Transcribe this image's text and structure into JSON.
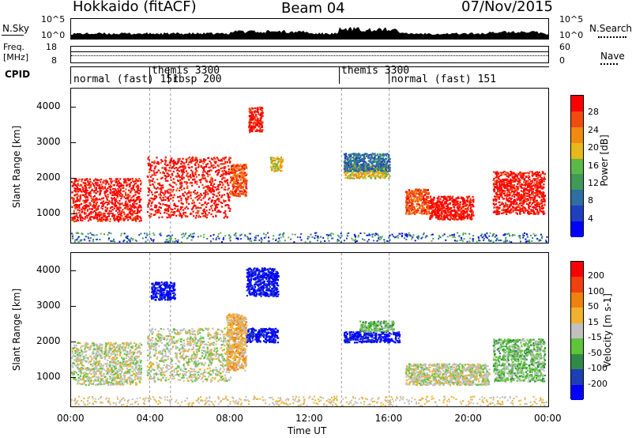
{
  "header": {
    "station": "Hokkaido (fitACF)",
    "beam": "Beam 04",
    "date": "07/Nov/2015"
  },
  "top_panels": {
    "nsky_label": "N.Sky",
    "nsky_ticks": [
      "10^5",
      "10^0"
    ],
    "nsearch_label": "N.Search",
    "nsearch_ticks": [
      "10^5",
      "10^0"
    ],
    "freq_label_1": "Freq.",
    "freq_label_2": "[MHz]",
    "freq_ticks": [
      "18",
      "8"
    ],
    "nave_label": "Nave",
    "nave_ticks": [
      "60",
      "0"
    ],
    "cpid_label": "CPID"
  },
  "cpid_segments": [
    {
      "text": "normal (fast) 151",
      "row": 2
    },
    {
      "text": "themis 3300",
      "row": 1
    },
    {
      "text": "rbsp 200",
      "row": 2
    },
    {
      "text": "themis 3300",
      "row": 1
    },
    {
      "text": "normal (fast) 151",
      "row": 2
    }
  ],
  "colors": {
    "power": [
      "#0000ff",
      "#1f3fbf",
      "#2e6ea0",
      "#3f9a5a",
      "#5db84a",
      "#e8b81a",
      "#f08a10",
      "#f04c10",
      "#ff0000"
    ],
    "velocity": [
      "#0000ff",
      "#1e3fb4",
      "#2f8a4a",
      "#5ec43a",
      "#c0c0c0",
      "#f0b030",
      "#f08010",
      "#f04010",
      "#ff0000"
    ]
  },
  "chart_data": [
    {
      "type": "heatmap",
      "title": "Power",
      "colorbar_label": "Power [dB]",
      "colorbar_ticks": [
        "28",
        "24",
        "20",
        "16",
        "12",
        "8",
        "4"
      ],
      "ylabel": "Slant Range [km]",
      "yticks": [
        "4000",
        "3000",
        "2000",
        "1000"
      ],
      "xlim": [
        0,
        24
      ],
      "ylim": [
        180,
        4500
      ],
      "regions": [
        {
          "t0": 0.0,
          "t1": 3.5,
          "r0": 800,
          "r1": 2000,
          "level": 8
        },
        {
          "t0": 3.8,
          "t1": 8.0,
          "r0": 900,
          "r1": 2600,
          "level": 8
        },
        {
          "t0": 8.0,
          "t1": 8.8,
          "r0": 1500,
          "r1": 2400,
          "level": 7
        },
        {
          "t0": 8.9,
          "t1": 9.6,
          "r0": 3300,
          "r1": 4000,
          "level": 8
        },
        {
          "t0": 10.0,
          "t1": 10.6,
          "r0": 2200,
          "r1": 2600,
          "level": 5
        },
        {
          "t0": 13.7,
          "t1": 16.0,
          "r0": 2000,
          "r1": 2400,
          "level": 5
        },
        {
          "t0": 13.7,
          "t1": 16.0,
          "r0": 2200,
          "r1": 2700,
          "level": 2
        },
        {
          "t0": 16.8,
          "t1": 18.0,
          "r0": 1000,
          "r1": 1700,
          "level": 7
        },
        {
          "t0": 18.0,
          "t1": 20.2,
          "r0": 850,
          "r1": 1500,
          "level": 8
        },
        {
          "t0": 21.2,
          "t1": 23.8,
          "r0": 1000,
          "r1": 2200,
          "level": 8
        }
      ]
    },
    {
      "type": "heatmap",
      "title": "Velocity",
      "colorbar_label": "Velocity [m s-1]",
      "colorbar_ticks": [
        "200",
        "100",
        "50",
        "15",
        "-15",
        "-50",
        "-100",
        "-200"
      ],
      "ylabel": "Slant Range [km]",
      "yticks": [
        "4000",
        "3000",
        "2000",
        "1000"
      ],
      "xlim": [
        0,
        24
      ],
      "ylim": [
        180,
        4500
      ],
      "regions": [
        {
          "t0": 0.0,
          "t1": 3.5,
          "r0": 800,
          "r1": 2000,
          "level": 4
        },
        {
          "t0": 3.8,
          "t1": 8.0,
          "r0": 900,
          "r1": 2400,
          "level": 4
        },
        {
          "t0": 4.0,
          "t1": 5.2,
          "r0": 3200,
          "r1": 3700,
          "level": 0
        },
        {
          "t0": 7.8,
          "t1": 8.8,
          "r0": 1200,
          "r1": 2800,
          "level": 5
        },
        {
          "t0": 8.8,
          "t1": 10.4,
          "r0": 3300,
          "r1": 4100,
          "level": 0
        },
        {
          "t0": 8.8,
          "t1": 10.4,
          "r0": 2000,
          "r1": 2400,
          "level": 0
        },
        {
          "t0": 13.7,
          "t1": 16.5,
          "r0": 2000,
          "r1": 2300,
          "level": 0
        },
        {
          "t0": 14.5,
          "t1": 16.2,
          "r0": 2300,
          "r1": 2600,
          "level": 3
        },
        {
          "t0": 16.8,
          "t1": 21.0,
          "r0": 800,
          "r1": 1400,
          "level": 4
        },
        {
          "t0": 21.2,
          "t1": 23.8,
          "r0": 900,
          "r1": 2100,
          "level": 3
        }
      ]
    }
  ],
  "x_axis": {
    "label": "Time UT",
    "ticks": [
      "00:00",
      "04:00",
      "08:00",
      "12:00",
      "16:00",
      "20:00",
      "00:00"
    ]
  }
}
